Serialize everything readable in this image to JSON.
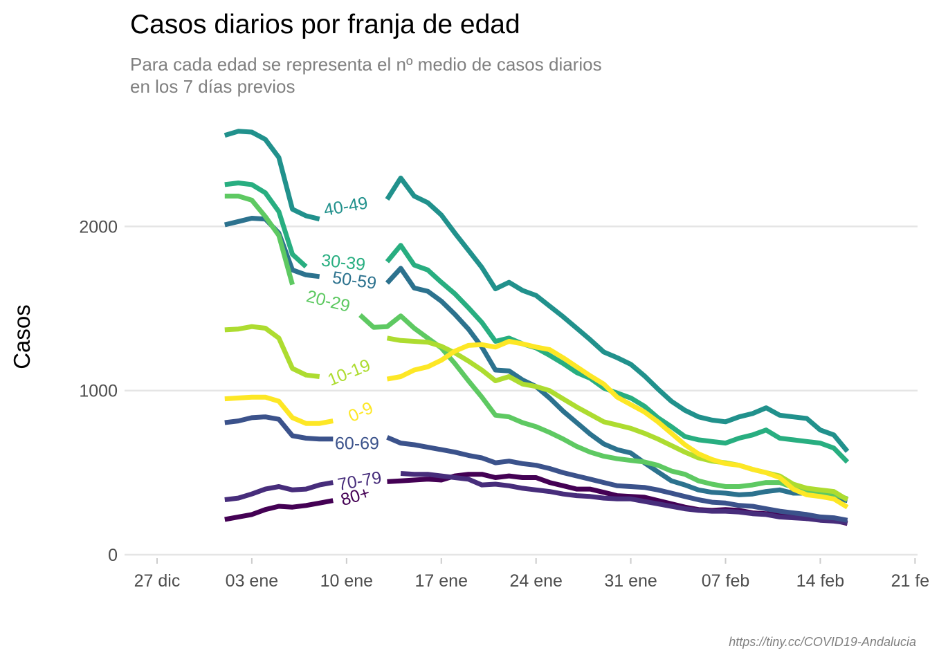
{
  "header": {
    "title": "Casos diarios por franja de edad",
    "subtitle_line1": "Para cada edad se representa el nº medio de casos diarios",
    "subtitle_line2": "en los 7 días previos"
  },
  "caption": "https://tiny.cc/COVID19-Andalucia",
  "chart_data": {
    "type": "line",
    "title": "Casos diarios por franja de edad",
    "subtitle": "Para cada edad se representa el nº medio de casos diarios en los 7 días previos",
    "ylabel": "Casos",
    "xlabel": "",
    "x_axis": "date",
    "x_start": "2021-01-01",
    "x_step_days": 1,
    "ylim": [
      0,
      2700
    ],
    "yticks": [
      0,
      1000,
      2000
    ],
    "xticks": [
      "27 dic",
      "03 ene",
      "10 ene",
      "17 ene",
      "24 ene",
      "31 ene",
      "07 feb",
      "14 feb",
      "21 feb"
    ],
    "grid": "horizontal",
    "legend": "direct labels on lines",
    "series": [
      {
        "name": "80+",
        "color": "#440154",
        "values": [
          215,
          230,
          245,
          275,
          295,
          290,
          300,
          315,
          330,
          null,
          null,
          null,
          445,
          450,
          455,
          460,
          455,
          480,
          490,
          490,
          470,
          480,
          470,
          470,
          440,
          420,
          400,
          400,
          380,
          360,
          355,
          350,
          330,
          310,
          290,
          275,
          270,
          275,
          270,
          255,
          250,
          245,
          240,
          220,
          215,
          210,
          190
        ]
      },
      {
        "name": "70-79",
        "color": "#472d7b",
        "values": [
          335,
          345,
          370,
          400,
          415,
          395,
          400,
          425,
          440,
          null,
          null,
          null,
          null,
          495,
          490,
          490,
          480,
          470,
          460,
          425,
          430,
          420,
          405,
          395,
          385,
          370,
          360,
          355,
          345,
          340,
          340,
          325,
          310,
          295,
          280,
          270,
          265,
          265,
          260,
          250,
          245,
          230,
          225,
          220,
          210,
          205,
          195
        ]
      },
      {
        "name": "60-69",
        "color": "#3b528b",
        "values": [
          805,
          815,
          835,
          840,
          825,
          725,
          710,
          705,
          705,
          null,
          null,
          null,
          715,
          680,
          670,
          655,
          640,
          625,
          605,
          590,
          560,
          570,
          555,
          545,
          525,
          500,
          480,
          460,
          440,
          420,
          415,
          410,
          395,
          375,
          355,
          335,
          320,
          315,
          300,
          295,
          280,
          265,
          255,
          245,
          230,
          225,
          210
        ]
      },
      {
        "name": "50-59",
        "color": "#2c728e",
        "values": [
          2010,
          2030,
          2050,
          2045,
          1960,
          1735,
          1705,
          1695,
          null,
          null,
          null,
          null,
          1655,
          1745,
          1625,
          1605,
          1545,
          1465,
          1375,
          1265,
          1125,
          1120,
          1065,
          1025,
          955,
          875,
          805,
          735,
          675,
          640,
          620,
          560,
          505,
          450,
          425,
          395,
          380,
          375,
          365,
          370,
          385,
          395,
          375,
          375,
          365,
          345,
          330
        ]
      },
      {
        "name": "40-49",
        "color": "#21918c",
        "values": [
          2555,
          2580,
          2575,
          2530,
          2420,
          2105,
          2065,
          2045,
          null,
          null,
          null,
          null,
          2165,
          2295,
          2185,
          2145,
          2070,
          1960,
          1855,
          1750,
          1620,
          1660,
          1610,
          1580,
          1515,
          1450,
          1380,
          1310,
          1235,
          1200,
          1160,
          1090,
          1010,
          935,
          880,
          840,
          820,
          810,
          840,
          860,
          895,
          850,
          840,
          830,
          760,
          730,
          630
        ]
      },
      {
        "name": "30-39",
        "color": "#28ae80",
        "values": [
          2255,
          2265,
          2255,
          2205,
          2090,
          1830,
          1755,
          null,
          null,
          null,
          null,
          null,
          1785,
          1885,
          1765,
          1735,
          1660,
          1590,
          1505,
          1415,
          1300,
          1320,
          1285,
          1260,
          1215,
          1165,
          1110,
          1075,
          1015,
          985,
          955,
          905,
          835,
          780,
          720,
          700,
          690,
          680,
          710,
          730,
          760,
          710,
          700,
          690,
          680,
          650,
          565
        ]
      },
      {
        "name": "20-29",
        "color": "#5ec962",
        "values": [
          2185,
          2185,
          2160,
          2060,
          1945,
          1645,
          null,
          null,
          null,
          null,
          1460,
          1385,
          1390,
          1455,
          1380,
          1320,
          1260,
          1165,
          1060,
          960,
          850,
          840,
          805,
          780,
          745,
          705,
          660,
          625,
          600,
          585,
          575,
          565,
          545,
          510,
          490,
          450,
          430,
          415,
          415,
          425,
          440,
          440,
          410,
          395,
          380,
          370,
          340
        ]
      },
      {
        "name": "10-19",
        "color": "#addc30",
        "values": [
          1370,
          1375,
          1390,
          1380,
          1320,
          1135,
          1095,
          1085,
          null,
          null,
          null,
          null,
          1320,
          1305,
          1300,
          1295,
          1270,
          1230,
          1180,
          1125,
          1060,
          1085,
          1040,
          1025,
          1000,
          950,
          900,
          855,
          810,
          790,
          770,
          740,
          705,
          665,
          625,
          590,
          570,
          560,
          545,
          520,
          500,
          480,
          430,
          405,
          395,
          385,
          335
        ]
      },
      {
        "name": "0-9",
        "color": "#fde725",
        "values": [
          950,
          955,
          960,
          960,
          935,
          835,
          800,
          800,
          815,
          null,
          null,
          null,
          1070,
          1085,
          1125,
          1145,
          1185,
          1240,
          1275,
          1280,
          1265,
          1300,
          1285,
          1265,
          1250,
          1200,
          1145,
          1090,
          1040,
          960,
          915,
          870,
          810,
          740,
          670,
          615,
          580,
          555,
          545,
          520,
          500,
          470,
          400,
          365,
          355,
          340,
          290
        ]
      }
    ],
    "series_labels": [
      {
        "name": "40-49",
        "text": "40-49",
        "color": "#21918c"
      },
      {
        "name": "30-39",
        "text": "30-39",
        "color": "#28ae80"
      },
      {
        "name": "50-59",
        "text": "50-59",
        "color": "#2c728e"
      },
      {
        "name": "20-29",
        "text": "20-29",
        "color": "#5ec962"
      },
      {
        "name": "10-19",
        "text": "10-19",
        "color": "#addc30"
      },
      {
        "name": "0-9",
        "text": "0-9",
        "color": "#fde725"
      },
      {
        "name": "60-69",
        "text": "60-69",
        "color": "#3b528b"
      },
      {
        "name": "70-79",
        "text": "70-79",
        "color": "#472d7b"
      },
      {
        "name": "80+",
        "text": "80+",
        "color": "#440154"
      }
    ]
  }
}
